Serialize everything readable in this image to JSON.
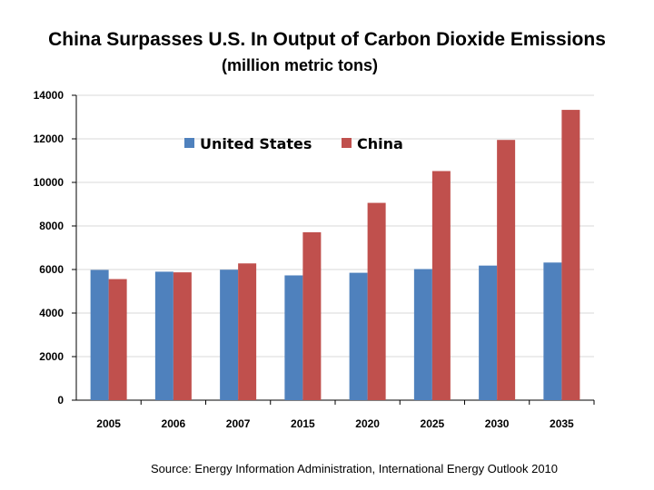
{
  "chart_data": {
    "type": "bar",
    "title": "China Surpasses U.S. In Output of Carbon Dioxide Emissions",
    "subtitle": "(million metric tons)",
    "categories": [
      "2005",
      "2006",
      "2007",
      "2015",
      "2020",
      "2025",
      "2030",
      "2035"
    ],
    "series": [
      {
        "name": "United States",
        "color": "#4F81BD",
        "values": [
          5980,
          5900,
          5990,
          5730,
          5850,
          6020,
          6180,
          6320
        ]
      },
      {
        "name": "China",
        "color": "#C0504D",
        "values": [
          5560,
          5870,
          6280,
          7710,
          9060,
          10520,
          11950,
          13330
        ]
      }
    ],
    "ylim": [
      0,
      14000
    ],
    "yticks": [
      0,
      2000,
      4000,
      6000,
      8000,
      10000,
      12000,
      14000
    ],
    "grid": true,
    "legend": "top-center",
    "source": "Source: Energy Information Administration, International Energy Outlook 2010"
  }
}
